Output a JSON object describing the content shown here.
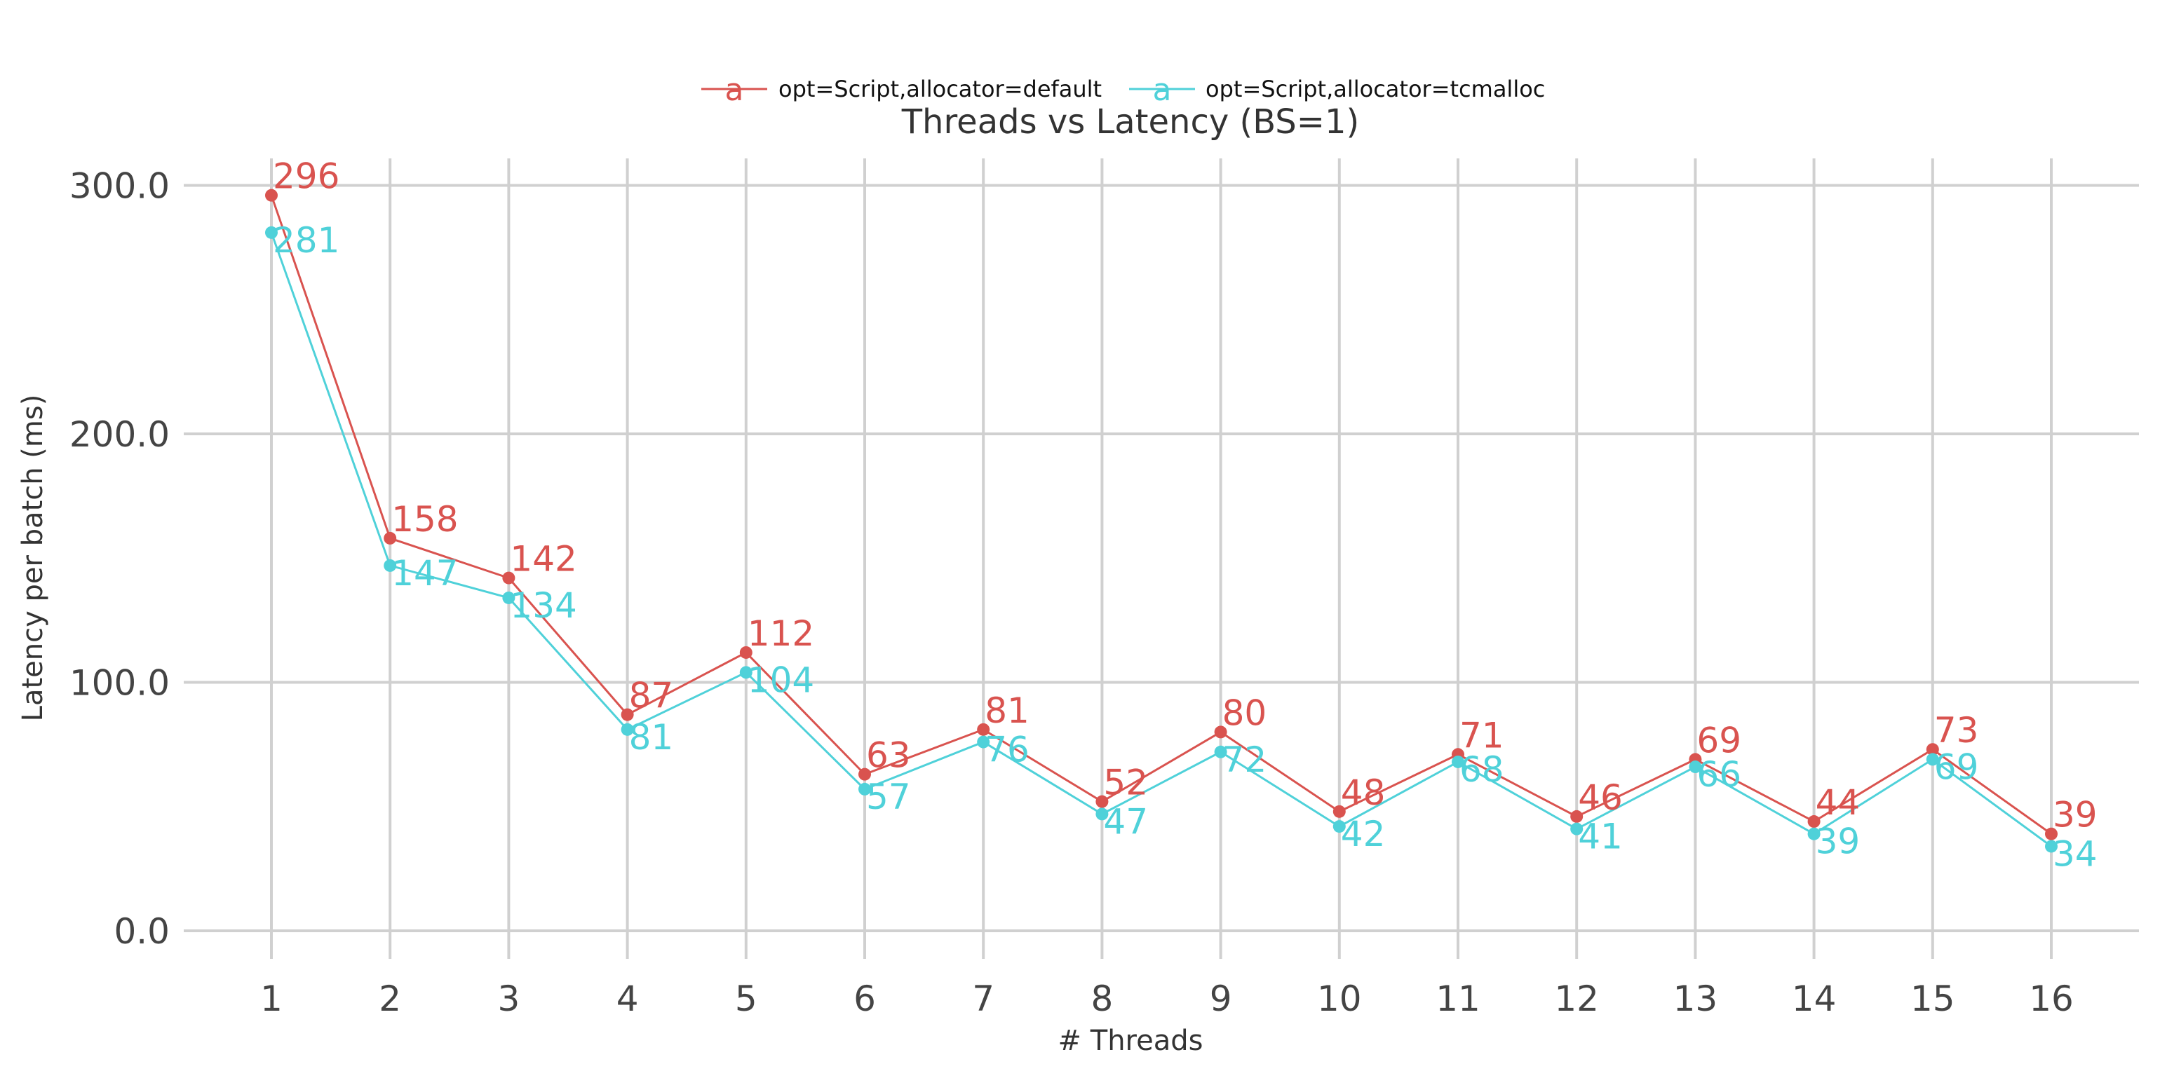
{
  "chart_data": {
    "type": "line",
    "title": "Threads vs Latency (BS=1)",
    "xlabel": "# Threads",
    "ylabel": "Latency per batch (ms)",
    "categories": [
      "1",
      "2",
      "3",
      "4",
      "5",
      "6",
      "7",
      "8",
      "9",
      "10",
      "11",
      "12",
      "13",
      "14",
      "15",
      "16"
    ],
    "x": [
      1,
      2,
      3,
      4,
      5,
      6,
      7,
      8,
      9,
      10,
      11,
      12,
      13,
      14,
      15,
      16
    ],
    "y_ticks": [
      0,
      100,
      200,
      300
    ],
    "y_tick_labels": [
      "0.0",
      "100.0",
      "200.0",
      "300.0"
    ],
    "ylim": [
      -10,
      312
    ],
    "grid": true,
    "legend_position": "top-center",
    "legend_marker_glyph": "a",
    "series": [
      {
        "name": "opt=Script,allocator=default",
        "color": "#d9534f",
        "values": [
          296,
          158,
          142,
          87,
          112,
          63,
          81,
          52,
          80,
          48,
          71,
          46,
          69,
          44,
          73,
          39
        ],
        "labels": [
          "296",
          "158",
          "142",
          "87",
          "112",
          "63",
          "81",
          "52",
          "80",
          "48",
          "71",
          "46",
          "69",
          "44",
          "73",
          "39"
        ]
      },
      {
        "name": "opt=Script,allocator=tcmalloc",
        "color": "#4fd1d9",
        "values": [
          281,
          147,
          134,
          81,
          104,
          57,
          76,
          47,
          72,
          42,
          68,
          41,
          66,
          39,
          69,
          34
        ],
        "labels": [
          "281",
          "147",
          "134",
          "81",
          "104",
          "57",
          "76",
          "47",
          "72",
          "42",
          "68",
          "41",
          "66",
          "39",
          "69",
          "34"
        ]
      }
    ]
  }
}
